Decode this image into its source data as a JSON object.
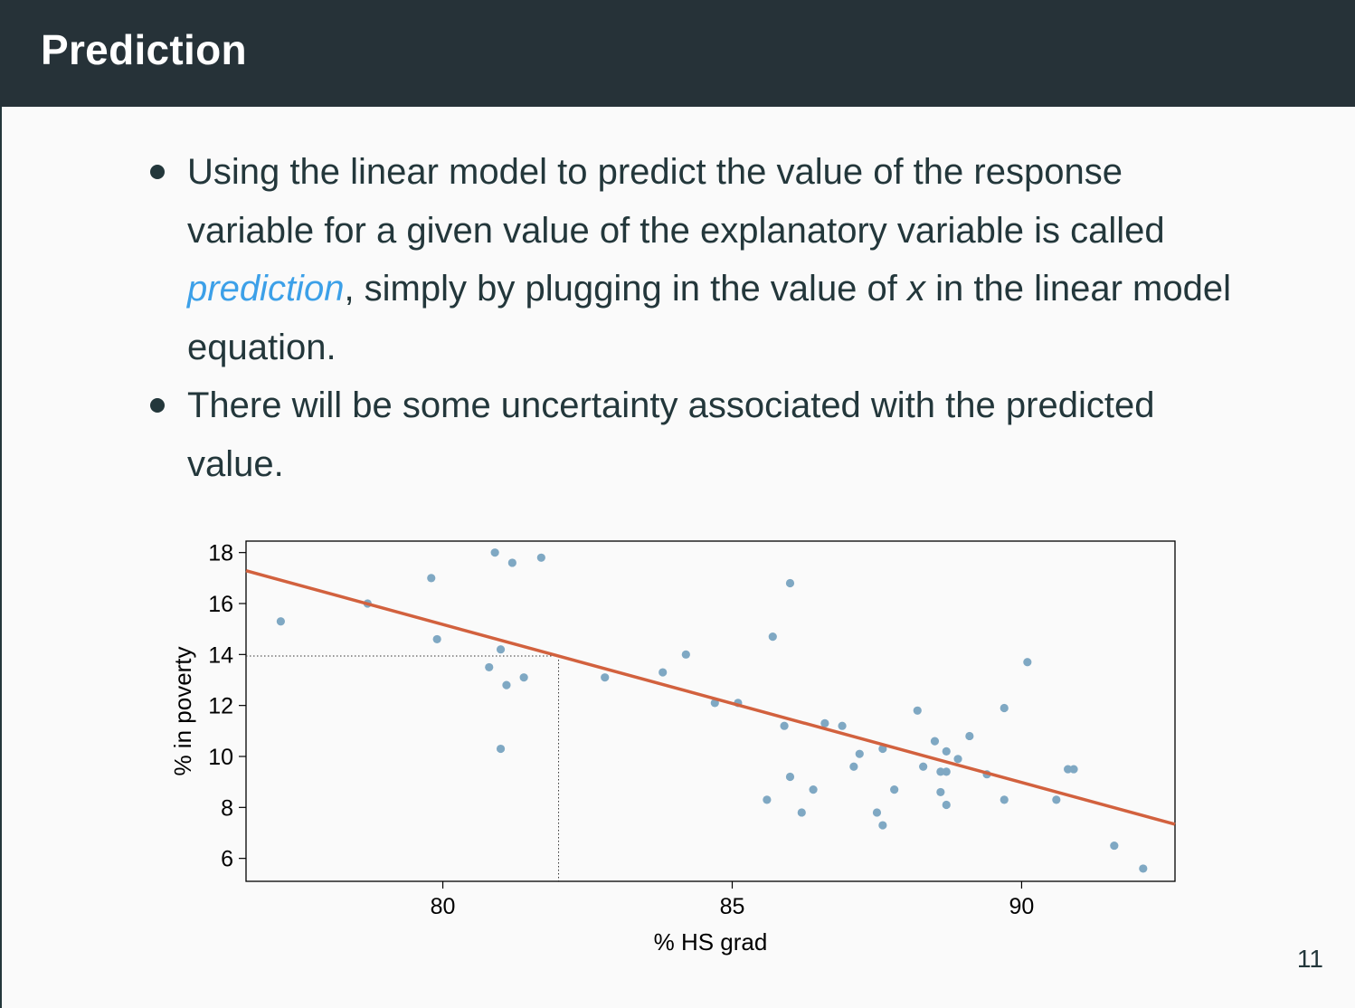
{
  "slide": {
    "title": "Prediction",
    "page_number": "11",
    "bullet1": {
      "text_before": "Using the linear model to predict the value of the response variable for a given value of the explanatory variable is called ",
      "term": "prediction",
      "text_middle": ", simply by plugging in the value of ",
      "variable": "x",
      "text_after": " in the linear model equation."
    },
    "bullet2": {
      "text": "There will be some uncertainty associated with the predicted value."
    }
  },
  "chart_data": {
    "type": "scatter",
    "title": "",
    "xlabel": "% HS grad",
    "ylabel": "% in poverty",
    "xlim": [
      76.6,
      92.65
    ],
    "ylim": [
      5.1,
      18.45
    ],
    "x_ticks": [
      80,
      85,
      90
    ],
    "y_ticks": [
      6,
      8,
      10,
      12,
      14,
      16,
      18
    ],
    "x_tick_labels": [
      "80",
      "85",
      "90"
    ],
    "y_tick_labels": [
      "6",
      "8",
      "10",
      "12",
      "14",
      "16",
      "18"
    ],
    "grid": false,
    "point_color": "#7fa8c3",
    "line_color": "#d2613e",
    "regression_line": {
      "intercept": 64.78,
      "slope": -0.62
    },
    "prediction_marker": {
      "x": 82,
      "y": 13.94
    },
    "points": [
      [
        77.2,
        15.3
      ],
      [
        78.7,
        16.0
      ],
      [
        79.8,
        17.0
      ],
      [
        79.9,
        14.6
      ],
      [
        80.9,
        18.0
      ],
      [
        81.2,
        17.6
      ],
      [
        81.7,
        17.8
      ],
      [
        81.0,
        14.2
      ],
      [
        80.8,
        13.5
      ],
      [
        81.1,
        12.8
      ],
      [
        81.4,
        13.1
      ],
      [
        81.0,
        10.3
      ],
      [
        82.8,
        13.1
      ],
      [
        83.8,
        13.3
      ],
      [
        84.2,
        14.0
      ],
      [
        84.7,
        12.1
      ],
      [
        85.1,
        12.1
      ],
      [
        85.7,
        14.7
      ],
      [
        86.0,
        16.8
      ],
      [
        85.9,
        11.2
      ],
      [
        86.6,
        11.3
      ],
      [
        86.9,
        11.2
      ],
      [
        85.6,
        8.3
      ],
      [
        86.0,
        9.2
      ],
      [
        86.2,
        7.8
      ],
      [
        86.4,
        8.7
      ],
      [
        87.1,
        9.6
      ],
      [
        87.2,
        10.1
      ],
      [
        87.5,
        7.8
      ],
      [
        87.6,
        7.3
      ],
      [
        87.8,
        8.7
      ],
      [
        87.6,
        10.3
      ],
      [
        88.2,
        11.8
      ],
      [
        88.3,
        9.6
      ],
      [
        88.5,
        10.6
      ],
      [
        88.6,
        9.4
      ],
      [
        88.7,
        9.4
      ],
      [
        88.7,
        10.2
      ],
      [
        88.9,
        9.9
      ],
      [
        88.6,
        8.6
      ],
      [
        88.7,
        8.1
      ],
      [
        89.1,
        10.8
      ],
      [
        89.4,
        9.3
      ],
      [
        89.7,
        11.9
      ],
      [
        89.7,
        8.3
      ],
      [
        90.1,
        13.7
      ],
      [
        90.6,
        8.3
      ],
      [
        90.8,
        9.5
      ],
      [
        90.9,
        9.5
      ],
      [
        91.6,
        6.5
      ],
      [
        92.1,
        5.6
      ]
    ]
  }
}
